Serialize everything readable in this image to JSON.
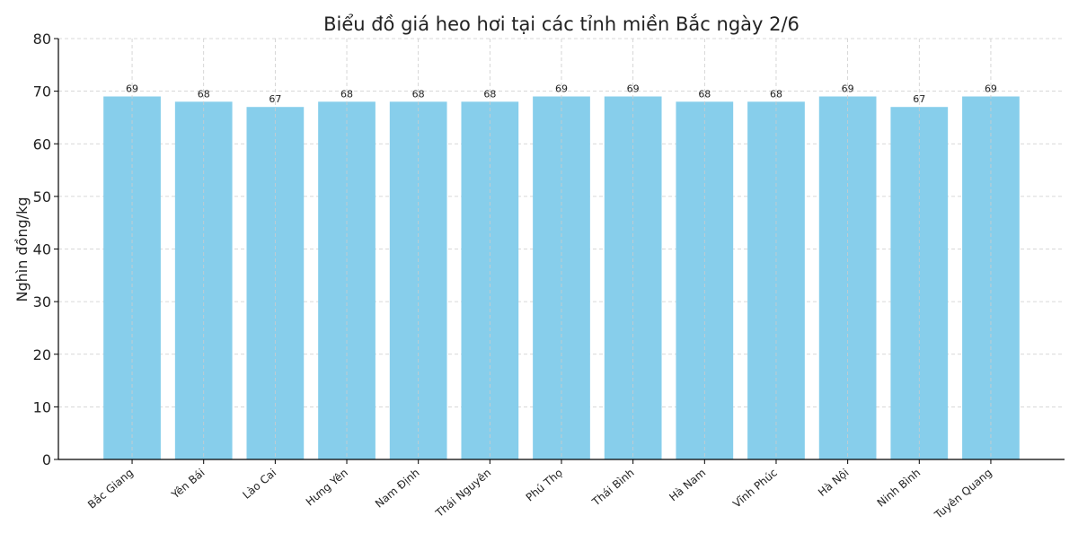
{
  "chart_data": {
    "type": "bar",
    "title": "Biểu đồ giá heo hơi tại các tỉnh miền Bắc ngày 2/6",
    "xlabel": "",
    "ylabel": "Nghìn đồng/kg",
    "ylim": [
      0,
      80
    ],
    "yticks": [
      0,
      10,
      20,
      30,
      40,
      50,
      60,
      70,
      80
    ],
    "grid": true,
    "bar_color": "#87CEEB",
    "categories": [
      "Bắc Giang",
      "Yên Bái",
      "Lào Cai",
      "Hưng Yên",
      "Nam Định",
      "Thái Nguyên",
      "Phú Thọ",
      "Thái Bình",
      "Hà Nam",
      "Vĩnh Phúc",
      "Hà Nội",
      "Ninh Bình",
      "Tuyên Quang"
    ],
    "values": [
      69,
      68,
      67,
      68,
      68,
      68,
      69,
      69,
      68,
      68,
      69,
      67,
      69
    ]
  }
}
